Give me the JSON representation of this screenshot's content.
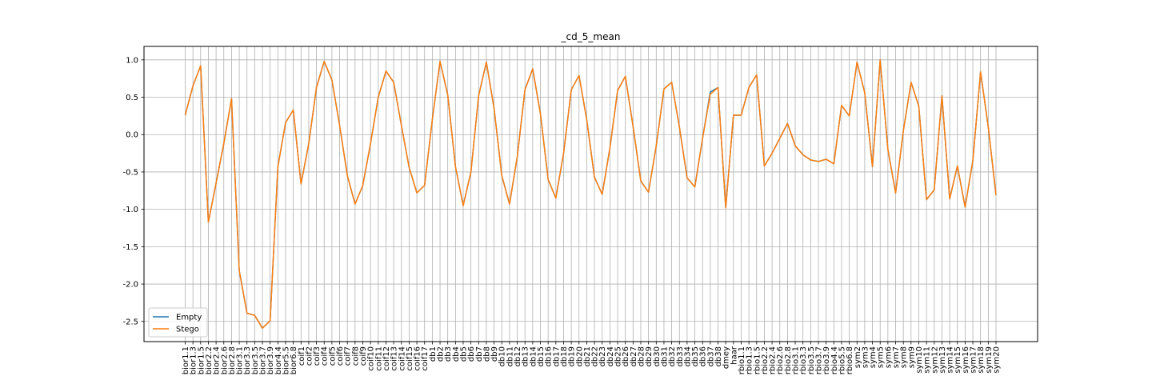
{
  "chart_data": {
    "type": "line",
    "title": "_cd_5_mean",
    "xlabel": "",
    "ylabel": "",
    "ylim": [
      -2.77,
      1.18
    ],
    "yticks": [
      "1.0",
      "0.5",
      "0.0",
      "-0.5",
      "-1.0",
      "-1.5",
      "-2.0",
      "-2.5"
    ],
    "ytick_values": [
      1.0,
      0.5,
      0.0,
      -0.5,
      -1.0,
      -1.5,
      -2.0,
      -2.5
    ],
    "grid": true,
    "legend_placement": "lower-left",
    "categories": [
      "bior1.1",
      "bior1.3",
      "bior1.5",
      "bior2.2",
      "bior2.4",
      "bior2.6",
      "bior2.8",
      "bior3.1",
      "bior3.3",
      "bior3.5",
      "bior3.7",
      "bior3.9",
      "bior4.4",
      "bior5.5",
      "bior6.8",
      "coif1",
      "coif2",
      "coif3",
      "coif4",
      "coif5",
      "coif6",
      "coif7",
      "coif8",
      "coif9",
      "coif10",
      "coif11",
      "coif12",
      "coif13",
      "coif14",
      "coif15",
      "coif16",
      "coif17",
      "db1",
      "db2",
      "db3",
      "db4",
      "db5",
      "db6",
      "db7",
      "db8",
      "db9",
      "db10",
      "db11",
      "db12",
      "db13",
      "db14",
      "db15",
      "db16",
      "db17",
      "db18",
      "db19",
      "db20",
      "db21",
      "db22",
      "db23",
      "db24",
      "db25",
      "db26",
      "db27",
      "db28",
      "db29",
      "db30",
      "db31",
      "db32",
      "db33",
      "db34",
      "db35",
      "db36",
      "db37",
      "db38",
      "dmey",
      "haar",
      "rbio1.1",
      "rbio1.3",
      "rbio1.5",
      "rbio2.2",
      "rbio2.4",
      "rbio2.6",
      "rbio2.8",
      "rbio3.1",
      "rbio3.3",
      "rbio3.5",
      "rbio3.7",
      "rbio3.9",
      "rbio4.4",
      "rbio5.5",
      "rbio6.8",
      "sym2",
      "sym3",
      "sym4",
      "sym5",
      "sym6",
      "sym7",
      "sym8",
      "sym9",
      "sym10",
      "sym11",
      "sym12",
      "sym13",
      "sym14",
      "sym15",
      "sym16",
      "sym17",
      "sym18",
      "sym19",
      "sym20"
    ],
    "series": [
      {
        "name": "Empty",
        "color": "#1f77b4",
        "values": [
          0.26,
          0.65,
          0.92,
          -1.17,
          -0.65,
          -0.12,
          0.48,
          -1.82,
          -2.39,
          -2.42,
          -2.59,
          -2.49,
          -0.43,
          0.16,
          0.33,
          -0.66,
          -0.12,
          0.63,
          0.98,
          0.73,
          0.12,
          -0.55,
          -0.93,
          -0.68,
          -0.12,
          0.5,
          0.85,
          0.7,
          0.12,
          -0.44,
          -0.78,
          -0.68,
          0.2,
          0.98,
          0.53,
          -0.43,
          -0.95,
          -0.5,
          0.52,
          0.97,
          0.35,
          -0.55,
          -0.93,
          -0.3,
          0.6,
          0.88,
          0.28,
          -0.6,
          -0.85,
          -0.25,
          0.6,
          0.79,
          0.2,
          -0.57,
          -0.8,
          -0.18,
          0.59,
          0.78,
          0.11,
          -0.62,
          -0.77,
          -0.15,
          0.61,
          0.7,
          0.1,
          -0.58,
          -0.7,
          -0.05,
          0.57,
          0.63,
          -0.98,
          0.26,
          0.26,
          0.63,
          0.8,
          -0.42,
          -0.25,
          -0.05,
          0.15,
          -0.15,
          -0.27,
          -0.34,
          -0.36,
          -0.33,
          -0.39,
          0.39,
          0.25,
          0.97,
          0.56,
          -0.43,
          1.0,
          -0.2,
          -0.78,
          0.05,
          0.7,
          0.38,
          -0.87,
          -0.74,
          0.52,
          -0.86,
          -0.42,
          -0.97,
          -0.35,
          0.84,
          0.1,
          -0.81
        ]
      },
      {
        "name": "Stego",
        "color": "#ff7f0e",
        "values": [
          0.26,
          0.65,
          0.92,
          -1.17,
          -0.65,
          -0.12,
          0.48,
          -1.82,
          -2.39,
          -2.42,
          -2.59,
          -2.49,
          -0.43,
          0.16,
          0.33,
          -0.66,
          -0.12,
          0.63,
          0.98,
          0.73,
          0.12,
          -0.55,
          -0.93,
          -0.68,
          -0.12,
          0.5,
          0.85,
          0.7,
          0.12,
          -0.44,
          -0.78,
          -0.68,
          0.2,
          0.98,
          0.53,
          -0.43,
          -0.95,
          -0.5,
          0.52,
          0.97,
          0.35,
          -0.55,
          -0.93,
          -0.3,
          0.6,
          0.88,
          0.28,
          -0.6,
          -0.85,
          -0.25,
          0.6,
          0.79,
          0.2,
          -0.57,
          -0.8,
          -0.18,
          0.59,
          0.78,
          0.11,
          -0.62,
          -0.77,
          -0.15,
          0.61,
          0.7,
          0.1,
          -0.58,
          -0.7,
          -0.05,
          0.54,
          0.63,
          -0.98,
          0.26,
          0.26,
          0.63,
          0.8,
          -0.42,
          -0.25,
          -0.05,
          0.15,
          -0.15,
          -0.27,
          -0.34,
          -0.36,
          -0.33,
          -0.39,
          0.39,
          0.25,
          0.97,
          0.56,
          -0.43,
          1.0,
          -0.2,
          -0.78,
          0.05,
          0.7,
          0.38,
          -0.87,
          -0.74,
          0.52,
          -0.86,
          -0.42,
          -0.97,
          -0.35,
          0.84,
          0.1,
          -0.81
        ]
      }
    ]
  }
}
